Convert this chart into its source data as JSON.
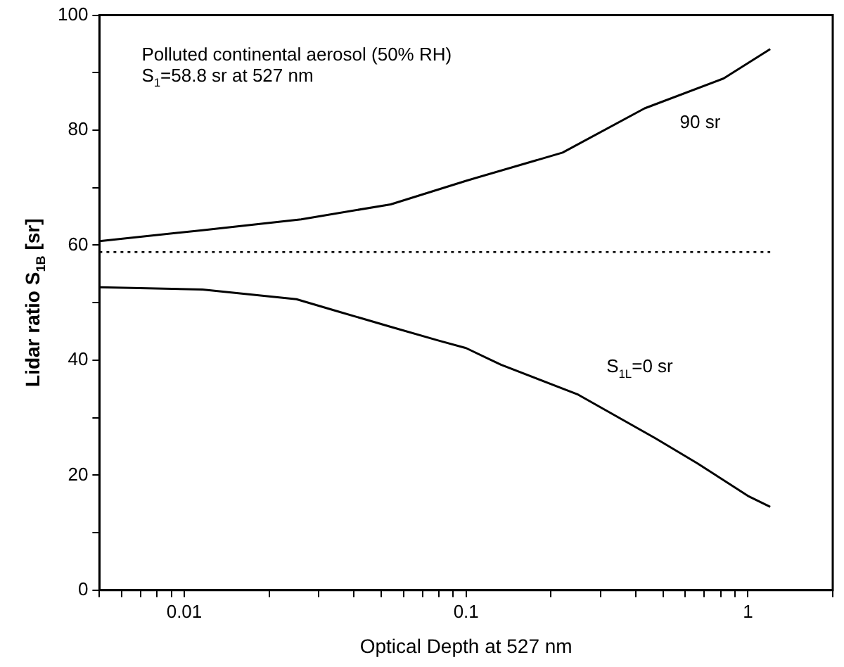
{
  "chart_data": {
    "type": "line",
    "xlabel": "Optical Depth at 527 nm",
    "ylabel": "Lidar ratio S$_{1B}$ [sr]",
    "log": "x",
    "xlim": [
      0.005,
      2
    ],
    "ylim": [
      0,
      100
    ],
    "xticks": [
      {
        "value": 0.005,
        "label": null
      },
      {
        "value": 0.006,
        "label": null
      },
      {
        "value": 0.007,
        "label": null
      },
      {
        "value": 0.008,
        "label": null
      },
      {
        "value": 0.009,
        "label": null
      },
      0.01,
      {
        "value": 0.02,
        "label": null
      },
      {
        "value": 0.03,
        "label": null
      },
      {
        "value": 0.04,
        "label": null
      },
      {
        "value": 0.05,
        "label": null
      },
      {
        "value": 0.06,
        "label": null
      },
      {
        "value": 0.07,
        "label": null
      },
      {
        "value": 0.08,
        "label": null
      },
      {
        "value": 0.09,
        "label": null
      },
      0.1,
      {
        "value": 0.2,
        "label": null
      },
      {
        "value": 0.3,
        "label": null
      },
      {
        "value": 0.4,
        "label": null
      },
      {
        "value": 0.5,
        "label": null
      },
      {
        "value": 0.6,
        "label": null
      },
      {
        "value": 0.7,
        "label": null
      },
      {
        "value": 0.8,
        "label": null
      },
      {
        "value": 0.9,
        "label": null
      },
      1,
      {
        "value": 2,
        "label": null
      }
    ],
    "yticks": [
      0,
      {
        "value": 10,
        "label": null
      },
      20,
      {
        "value": 30,
        "label": null
      },
      40,
      {
        "value": 50,
        "label": null
      },
      60,
      {
        "value": 70,
        "label": null
      },
      80,
      {
        "value": 90,
        "label": null
      },
      100
    ],
    "grid": false,
    "legend": false,
    "marker": "none",
    "line_style": "solid",
    "series": [
      {
        "name": "90 sr",
        "color": "#000000",
        "x": [
          0.005,
          0.0116,
          0.026,
          0.054,
          0.1,
          0.22,
          0.43,
          0.82,
          1.2
        ],
        "values": [
          60.7,
          62.6,
          64.5,
          67.1,
          71.2,
          76.1,
          83.8,
          89,
          94.1
        ]
      },
      {
        "name": "S$_{1L}$=0 sr",
        "color": "#000000",
        "x": [
          0.005,
          0.0116,
          0.025,
          0.035,
          0.054,
          0.08,
          0.1,
          0.133,
          0.25,
          0.47,
          0.66,
          1.0,
          1.2
        ],
        "values": [
          52.7,
          52.3,
          50.6,
          48.5,
          45.8,
          43.4,
          42.1,
          39.2,
          34,
          26.4,
          22.1,
          16.4,
          14.5
        ]
      }
    ],
    "ref_lines": [
      {
        "axis": "y",
        "value": 58.8,
        "line_style": "dotted",
        "color": "#000000"
      }
    ],
    "annotations": [
      "Polluted continental aerosol (50% RH)",
      "S$_{1}$=58.8 sr at 527 nm"
    ]
  }
}
